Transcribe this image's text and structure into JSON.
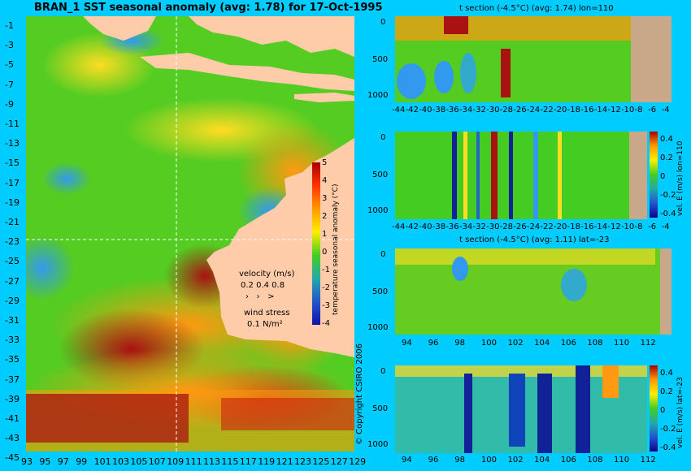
{
  "main_title": "BRAN_1  SST seasonal anomaly (avg: 1.78) for 17-Oct-1995",
  "copyright": "© Copyright CSIRO 2006",
  "map": {
    "lat_ticks": [
      "-1",
      "-3",
      "-5",
      "-7",
      "-9",
      "-11",
      "-13",
      "-15",
      "-17",
      "-19",
      "-21",
      "-23",
      "-25",
      "-27",
      "-29",
      "-31",
      "-33",
      "-35",
      "-37",
      "-39",
      "-41",
      "-43",
      "-45"
    ],
    "lon_ticks": [
      "93",
      "95",
      "97",
      "99",
      "101",
      "103",
      "105",
      "107",
      "109",
      "111",
      "113",
      "115",
      "117",
      "119",
      "121",
      "123",
      "125",
      "127",
      "129"
    ],
    "colorbar_label": "temperature seasonal anomaly (°C)",
    "colorbar_ticks": [
      "5",
      "4",
      "3",
      "2",
      "1",
      "0",
      "-1",
      "-2",
      "-3",
      "-4"
    ],
    "velocity_label": "velocity (m/s)",
    "velocity_values": "0.2 0.4 0.8",
    "wind_label": "wind stress",
    "wind_value": "0.1 N/m²"
  },
  "panels": [
    {
      "title": "t section (-4.5°C) (avg: 1.74) lon=110",
      "y_ticks": [
        "0",
        "500",
        "1000"
      ],
      "x_ticks": [
        "-44",
        "-42",
        "-40",
        "-38",
        "-36",
        "-34",
        "-32",
        "-30",
        "-28",
        "-26",
        "-24",
        "-22",
        "-20",
        "-18",
        "-16",
        "-14",
        "-12",
        "-10",
        "-8",
        "-6",
        "-4"
      ]
    },
    {
      "title": "",
      "y_ticks": [
        "0",
        "500",
        "1000"
      ],
      "x_ticks": [
        "-44",
        "-42",
        "-40",
        "-38",
        "-36",
        "-34",
        "-32",
        "-30",
        "-28",
        "-26",
        "-24",
        "-22",
        "-20",
        "-18",
        "-16",
        "-14",
        "-12",
        "-10",
        "-8",
        "-6",
        "-4"
      ],
      "colorbar_label": "vel. E (m/s) lon=110",
      "colorbar_ticks": [
        "0.4",
        "0.2",
        "0",
        "-0.2",
        "-0.4"
      ]
    },
    {
      "title": "t section (-4.5°C) (avg: 1.11) lat=-23",
      "y_ticks": [
        "0",
        "500",
        "1000"
      ],
      "x_ticks": [
        "94",
        "96",
        "98",
        "100",
        "102",
        "104",
        "106",
        "108",
        "110",
        "112"
      ]
    },
    {
      "title": "",
      "y_ticks": [
        "0",
        "500",
        "1000"
      ],
      "x_ticks": [
        "94",
        "96",
        "98",
        "100",
        "102",
        "104",
        "106",
        "108",
        "110",
        "112"
      ],
      "colorbar_label": "vel. E (m/s) lat=-23",
      "colorbar_ticks": [
        "0.4",
        "0.2",
        "0",
        "-0.2",
        "-0.4"
      ]
    }
  ],
  "colors": {
    "background": "#00ccff",
    "land": "#ffccaa",
    "land_section": "#c8a888",
    "anomaly_warm": "#aa1111",
    "anomaly_neutral": "#44cc22",
    "anomaly_cool": "#2266cc"
  }
}
